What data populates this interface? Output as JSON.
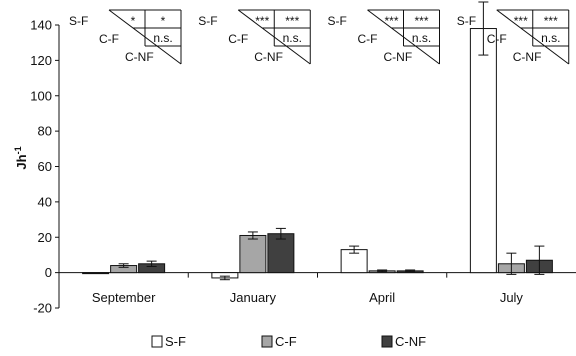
{
  "chart_data": {
    "type": "bar",
    "ylabel": "Jh",
    "ylabel_sup": "-1",
    "ylim": [
      -20,
      140
    ],
    "yticks": [
      -20,
      0,
      20,
      40,
      60,
      80,
      100,
      120,
      140
    ],
    "categories": [
      "September",
      "January",
      "April",
      "July"
    ],
    "series": [
      {
        "name": "S-F",
        "color": "#ffffff",
        "values": [
          0,
          -3,
          13,
          138
        ],
        "errors": [
          0,
          1,
          2,
          15
        ]
      },
      {
        "name": "C-F",
        "color": "#a6a6a6",
        "values": [
          4,
          21,
          1,
          5
        ],
        "errors": [
          1,
          2,
          0.5,
          6
        ]
      },
      {
        "name": "C-NF",
        "color": "#404040",
        "values": [
          5,
          22,
          1,
          7
        ],
        "errors": [
          1.5,
          3,
          0.5,
          8
        ]
      }
    ],
    "significance": [
      {
        "category": "September",
        "sf": "*",
        "cf_sf": "*",
        "cnf_cf": "n.s."
      },
      {
        "category": "January",
        "sf": "***",
        "cf_sf": "***",
        "cnf_cf": "n.s."
      },
      {
        "category": "April",
        "sf": "***",
        "cf_sf": "***",
        "cnf_cf": "n.s."
      },
      {
        "category": "July",
        "sf": "***",
        "cf_sf": "***",
        "cnf_cf": "n.s."
      }
    ],
    "sig_row_labels": [
      "S-F",
      "C-F",
      "C-NF"
    ],
    "legend_position": "bottom",
    "grid": false
  }
}
